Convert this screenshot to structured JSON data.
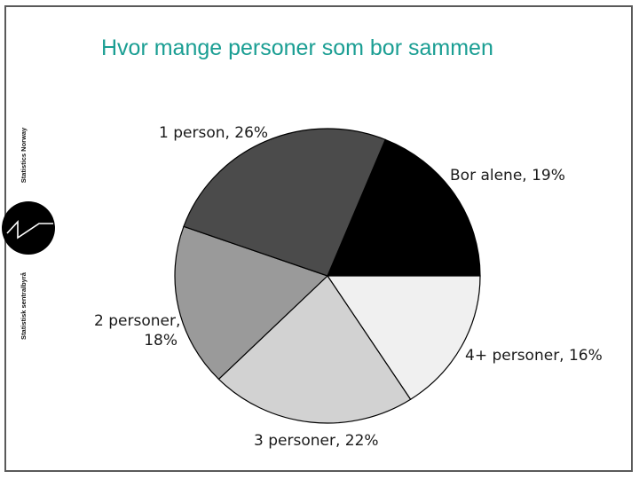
{
  "chart_data": {
    "type": "pie",
    "title": "Hvor mange personer som bor sammen",
    "slices": [
      {
        "label": "Bor alene, 19%",
        "value": 19,
        "color": "#000000"
      },
      {
        "label": "4+ personer, 16%",
        "value": 16,
        "color": "#f0f0f0"
      },
      {
        "label": "3 personer, 22%",
        "value": 22,
        "color": "#d2d2d2"
      },
      {
        "label": "2 personer, 18%",
        "value": 18,
        "color": "#9a9a9a"
      },
      {
        "label": "1 person, 26%",
        "value": 26,
        "color": "#4b4b4b"
      }
    ],
    "labels_display": {
      "one": "1 person, 26%",
      "alone": "Bor alene, 19%",
      "two_line1": "2 personer,",
      "two_line2": "18%",
      "four": "4+ personer, 16%",
      "three": "3 personer, 22%"
    },
    "legend": "none"
  },
  "logo": {
    "top_text": "Statistics Norway",
    "bottom_text": "Statistisk sentralbyrå"
  }
}
